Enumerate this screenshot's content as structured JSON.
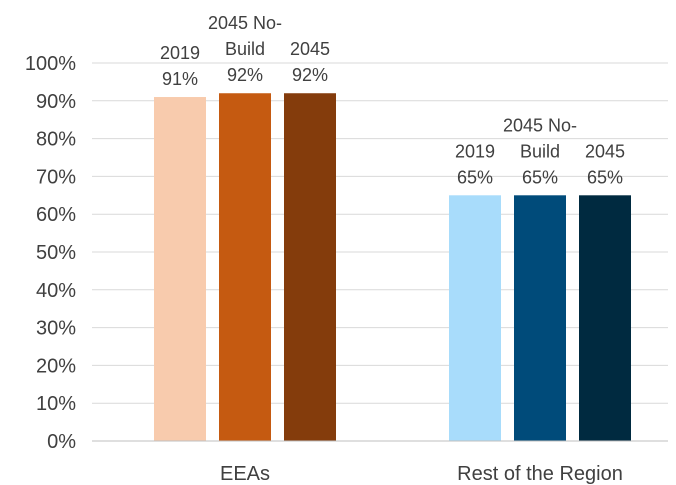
{
  "chart_data": {
    "type": "bar",
    "categories": [
      "EEAs",
      "Rest of the Region"
    ],
    "groups": [
      {
        "category": "EEAs",
        "bars": [
          {
            "label_lines": [
              "2019"
            ],
            "value": 91,
            "value_label": "91%",
            "color": "#f8cbad"
          },
          {
            "label_lines": [
              "2045 No-",
              "Build"
            ],
            "value": 92,
            "value_label": "92%",
            "color": "#c55a11"
          },
          {
            "label_lines": [
              "2045"
            ],
            "value": 92,
            "value_label": "92%",
            "color": "#843c0c"
          }
        ]
      },
      {
        "category": "Rest of the Region",
        "bars": [
          {
            "label_lines": [
              "2019"
            ],
            "value": 65,
            "value_label": "65%",
            "color": "#a8dcfb"
          },
          {
            "label_lines": [
              "2045 No-",
              "Build"
            ],
            "value": 65,
            "value_label": "65%",
            "color": "#004b7a"
          },
          {
            "label_lines": [
              "2045"
            ],
            "value": 65,
            "value_label": "65%",
            "color": "#002a40"
          }
        ]
      }
    ],
    "y_ticks": [
      "0%",
      "10%",
      "20%",
      "30%",
      "40%",
      "50%",
      "60%",
      "70%",
      "80%",
      "90%",
      "100%"
    ],
    "ylim": [
      0,
      100
    ],
    "title": "",
    "xlabel": "",
    "ylabel": "",
    "grid": true,
    "legend": "none"
  }
}
